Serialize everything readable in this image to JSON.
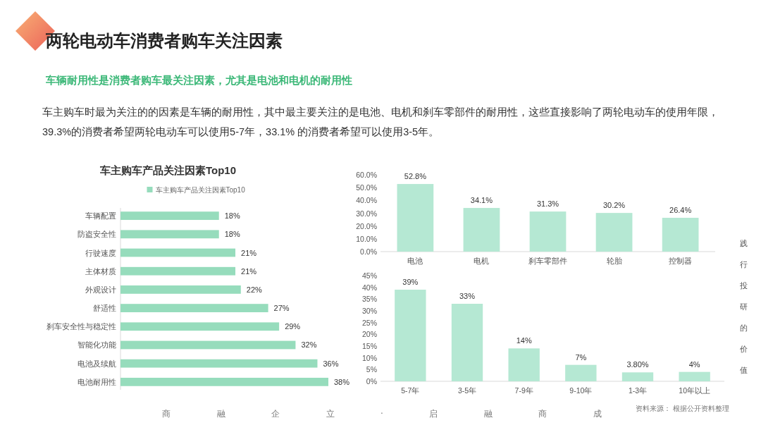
{
  "chart_data": [
    {
      "type": "bar",
      "orientation": "horizontal",
      "title": "车主购车产品关注因素Top10",
      "categories": [
        "车辆配置",
        "防盗安全性",
        "行驶速度",
        "主体材质",
        "外观设计",
        "舒适性",
        "刹车安全性与稳定性",
        "智能化功能",
        "电池及续航",
        "电池耐用性"
      ],
      "series": [
        {
          "name": "车主购车产品关注因素Top10",
          "color": "#96dcbc",
          "values": [
            18,
            18,
            21,
            21,
            22,
            27,
            29,
            32,
            36,
            38
          ],
          "value_labels": [
            "18%",
            "18%",
            "21%",
            "21%",
            "22%",
            "27%",
            "29%",
            "32%",
            "36%",
            "38%"
          ]
        }
      ],
      "legend": "top",
      "annotations": [
        "两轮电动车消费者购车关注因素",
        "车辆耐用性是消费者购车最关注因素，尤其是电池和电机的耐用性",
        "车主购车时最为关注的的因素是车辆的耐用性，其中最主要关注的是电池、电机和刹车零部件的耐用性，这些直接影响了两轮电动车的使用年限，39.3%的消费者希望两轮电动车可以使用5-7年，33.1% 的消费者希望可以使用3-5年。"
      ]
    },
    {
      "type": "bar",
      "categories": [
        "电池",
        "电机",
        "刹车零部件",
        "轮胎",
        "控制器"
      ],
      "values": [
        52.8,
        34.1,
        31.3,
        30.2,
        26.4
      ],
      "color": "#b5e8d3",
      "value_labels": [
        "52.8%",
        "34.1%",
        "31.3%",
        "30.2%",
        "26.4%"
      ],
      "ylim": [
        0,
        60
      ],
      "yticks": [
        {
          "value": 0,
          "label": "0.0%"
        },
        {
          "value": 10,
          "label": "10.0%"
        },
        {
          "value": 20,
          "label": "20.0%"
        },
        {
          "value": 30,
          "label": "30.0%"
        },
        {
          "value": 40,
          "label": "40.0%"
        },
        {
          "value": 50,
          "label": "50.0%"
        },
        {
          "value": 60,
          "label": "60.0%"
        }
      ]
    },
    {
      "type": "bar",
      "categories": [
        "5-7年",
        "3-5年",
        "7-9年",
        "9-10年",
        "1-3年",
        "10年以上"
      ],
      "values": [
        39,
        33,
        14,
        7,
        3.8,
        4
      ],
      "color": "#b5e8d3",
      "value_labels": [
        "39%",
        "33%",
        "14%",
        "7%",
        "3.80%",
        "4%"
      ],
      "ylim": [
        0,
        45
      ],
      "yticks": [
        {
          "value": 0,
          "label": "0%"
        },
        {
          "value": 5,
          "label": "5%"
        },
        {
          "value": 10,
          "label": "10%"
        },
        {
          "value": 15,
          "label": "15%"
        },
        {
          "value": 20,
          "label": "20%"
        },
        {
          "value": 25,
          "label": "25%"
        },
        {
          "value": 30,
          "label": "30%"
        },
        {
          "value": 35,
          "label": "35%"
        },
        {
          "value": 40,
          "label": "40%"
        },
        {
          "value": 45,
          "label": "45%"
        }
      ],
      "annotations": [
        "资料来源： 根据公开资料整理",
        "商融企立·启融商成",
        "践行投研的价值"
      ]
    }
  ]
}
